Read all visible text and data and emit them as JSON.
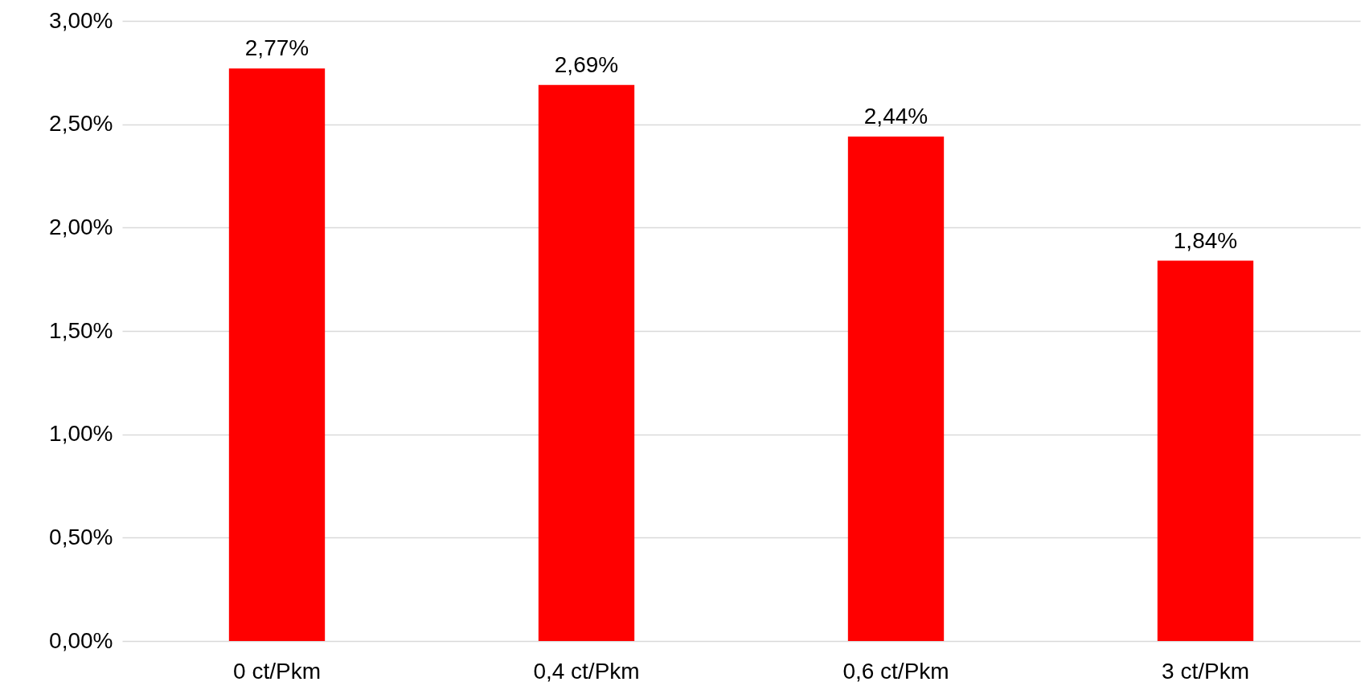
{
  "chart_data": {
    "type": "bar",
    "categories": [
      "0 ct/Pkm",
      "0,4 ct/Pkm",
      "0,6 ct/Pkm",
      "3 ct/Pkm"
    ],
    "values": [
      2.77,
      2.69,
      2.44,
      1.84
    ],
    "value_labels": [
      "2,77%",
      "2,69%",
      "2,44%",
      "1,84%"
    ],
    "color": "#ff0000",
    "ylim": [
      0,
      3
    ],
    "yticks": [
      {
        "value": 0,
        "label": "0,00%"
      },
      {
        "value": 0.5,
        "label": "0,50%"
      },
      {
        "value": 1,
        "label": "1,00%"
      },
      {
        "value": 1.5,
        "label": "1,50%"
      },
      {
        "value": 2,
        "label": "2,00%"
      },
      {
        "value": 2.5,
        "label": "2,50%"
      },
      {
        "value": 3,
        "label": "3,00%"
      }
    ],
    "grid": "y"
  }
}
